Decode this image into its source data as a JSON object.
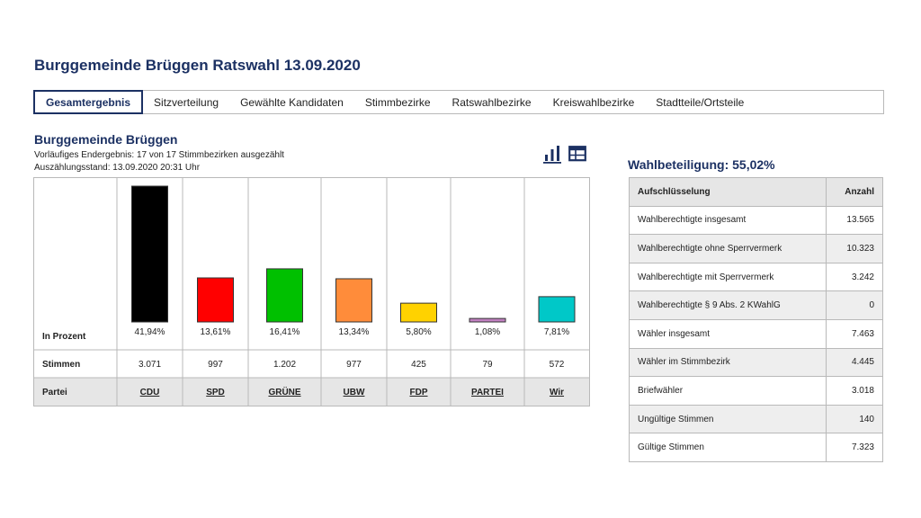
{
  "page_title": "Burggemeinde Brüggen Ratswahl 13.09.2020",
  "tabs": [
    {
      "label": "Gesamtergebnis",
      "active": true
    },
    {
      "label": "Sitzverteilung"
    },
    {
      "label": "Gewählte Kandidaten"
    },
    {
      "label": "Stimmbezirke"
    },
    {
      "label": "Ratswahlbezirke"
    },
    {
      "label": "Kreiswahlbezirke"
    },
    {
      "label": "Stadtteile/Ortsteile"
    }
  ],
  "section": {
    "title": "Burggemeinde Brüggen",
    "status": "Vorläufiges Endergebnis: 17 von 17 Stimmbezirken ausgezählt",
    "timestamp": "Auszählungsstand: 13.09.2020 20:31 Uhr"
  },
  "icons": {
    "chart_view": "bar-chart-icon",
    "table_view": "table-icon"
  },
  "chart_data": {
    "type": "bar",
    "row_labels": {
      "percent": "In Prozent",
      "votes": "Stimmen",
      "party": "Partei"
    },
    "categories": [
      "CDU",
      "SPD",
      "GRÜNE",
      "UBW",
      "FDP",
      "PARTEI",
      "Wir"
    ],
    "values": [
      41.94,
      13.61,
      16.41,
      13.34,
      5.8,
      1.08,
      7.81
    ],
    "value_labels": [
      "41,94%",
      "13,61%",
      "16,41%",
      "13,34%",
      "5,80%",
      "1,08%",
      "7,81%"
    ],
    "votes": [
      "3.071",
      "997",
      "1.202",
      "977",
      "425",
      "79",
      "572"
    ],
    "colors": [
      "#000000",
      "#ff0000",
      "#00c000",
      "#ff8c3a",
      "#ffd200",
      "#c080c0",
      "#00c8c8"
    ]
  },
  "turnout": {
    "title": "Wahlbeteiligung: 55,02%",
    "header": {
      "label": "Aufschlüsselung",
      "count": "Anzahl"
    },
    "rows": [
      {
        "label": "Wahlberechtigte insgesamt",
        "value": "13.565"
      },
      {
        "label": "Wahlberechtigte ohne Sperrvermerk",
        "value": "10.323"
      },
      {
        "label": "Wahlberechtigte mit Sperrvermerk",
        "value": "3.242"
      },
      {
        "label": "Wahlberechtigte § 9 Abs. 2 KWahlG",
        "value": "0"
      },
      {
        "label": "Wähler insgesamt",
        "value": "7.463"
      },
      {
        "label": "Wähler im Stimmbezirk",
        "value": "4.445"
      },
      {
        "label": "Briefwähler",
        "value": "3.018"
      },
      {
        "label": "Ungültige Stimmen",
        "value": "140"
      },
      {
        "label": "Gültige Stimmen",
        "value": "7.323"
      }
    ]
  }
}
